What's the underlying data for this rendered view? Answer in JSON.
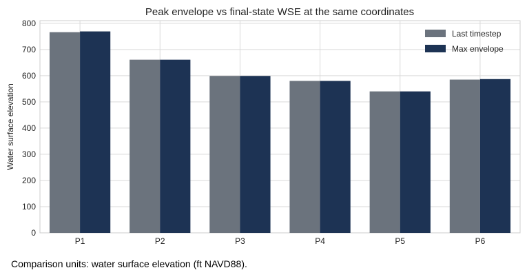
{
  "chart_data": {
    "type": "bar",
    "title": "Peak envelope vs final-state WSE at the same coordinates",
    "xlabel": "",
    "ylabel": "Water surface elevation",
    "categories": [
      "P1",
      "P2",
      "P3",
      "P4",
      "P5",
      "P6"
    ],
    "series": [
      {
        "name": "Last timestep",
        "color": "#6b737d",
        "values": [
          766,
          661,
          599,
          580,
          540,
          585
        ]
      },
      {
        "name": "Max envelope",
        "color": "#1d3354",
        "values": [
          769,
          661,
          599,
          580,
          540,
          587
        ]
      }
    ],
    "ylim": [
      0,
      810
    ],
    "yticks": [
      0,
      100,
      200,
      300,
      400,
      500,
      600,
      700,
      800
    ],
    "grid": true,
    "legend": "top-right"
  },
  "caption": "Comparison units: water surface elevation (ft NAVD88)."
}
